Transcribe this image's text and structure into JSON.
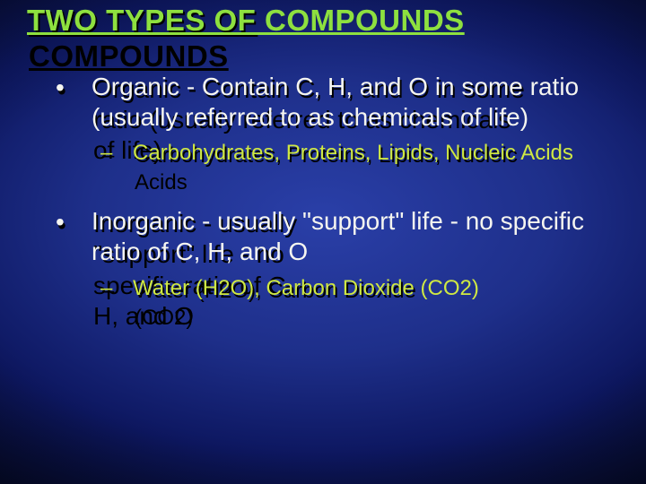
{
  "colors": {
    "title_color": "#8EE03F",
    "body_color": "#f5f5f0",
    "sub_color": "#CFE843",
    "shadow_color": "#000000",
    "bg_center": "#2a3fa8",
    "bg_edge": "#020410"
  },
  "typography": {
    "title_fontsize_pt": 25,
    "body_fontsize_pt": 21,
    "sub_fontsize_pt": 18,
    "title_weight": 900,
    "body_weight": 400,
    "font_family": "Arial"
  },
  "title": "TWO TYPES OF COMPOUNDS",
  "bullets": [
    {
      "mark": "•",
      "text": "Organic - Contain C, H, and O in some ratio (usually referred to as chemicals of life)",
      "subs": [
        {
          "mark": "–",
          "text": "Carbohydrates, Proteins, Lipids, Nucleic Acids"
        }
      ]
    },
    {
      "mark": "•",
      "text": "Inorganic - usually \"support\" life - no specific ratio of C, H, and O",
      "subs": [
        {
          "mark": "–",
          "text": "Water (H2O), Carbon Dioxide (CO2)"
        }
      ]
    }
  ]
}
